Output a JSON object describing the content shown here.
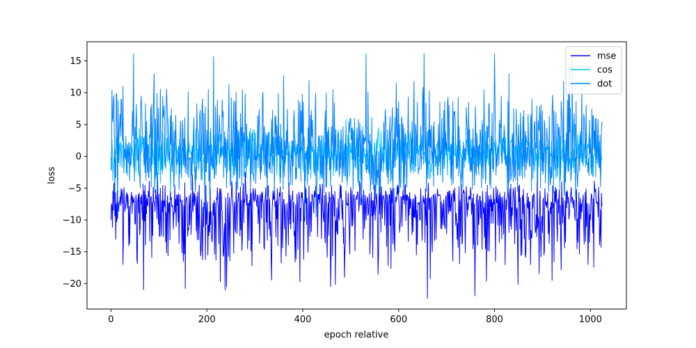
{
  "chart_data": {
    "type": "line",
    "xlabel": "epoch relative",
    "ylabel": "loss",
    "xlim": [
      -50,
      1075
    ],
    "ylim": [
      -24,
      18
    ],
    "xticks": [
      0,
      200,
      400,
      600,
      800,
      1000
    ],
    "yticks": [
      -20,
      -15,
      -10,
      -5,
      0,
      5,
      10,
      15
    ],
    "legend_position": "top-right",
    "n_points": 1025,
    "series": [
      {
        "name": "mse",
        "color": "#0000ff",
        "center": -7.5,
        "low": -22.3,
        "high": -2.5,
        "peaks": [
          [
            155,
            -20.8
          ],
          [
            238,
            -21.0
          ],
          [
            241,
            -20.5
          ],
          [
            394,
            -19.7
          ],
          [
            487,
            -19.0
          ],
          [
            660,
            -22.3
          ],
          [
            666,
            -19.2
          ],
          [
            783,
            -19.6
          ],
          [
            920,
            -19.5
          ],
          [
            995,
            -17.0
          ],
          [
            25,
            -17.0
          ]
        ]
      },
      {
        "name": "cos",
        "color": "#00bfff",
        "center": 0.5,
        "low": -5.5,
        "high": 6.0,
        "peaks": []
      },
      {
        "name": "dot",
        "color": "#0080ff",
        "center": 0.5,
        "low": -9.5,
        "high": 16.1,
        "peaks": [
          [
            2,
            10.4
          ],
          [
            25,
            11.0
          ],
          [
            108,
            9.4
          ],
          [
            246,
            11.3
          ],
          [
            360,
            12.7
          ],
          [
            413,
            11.9
          ],
          [
            463,
            10.5
          ],
          [
            532,
            16.1
          ],
          [
            595,
            11.5
          ],
          [
            632,
            11.8
          ],
          [
            830,
            13.0
          ],
          [
            944,
            11.8
          ],
          [
            650,
            9.7
          ],
          [
            280,
            9.8
          ]
        ]
      }
    ]
  }
}
